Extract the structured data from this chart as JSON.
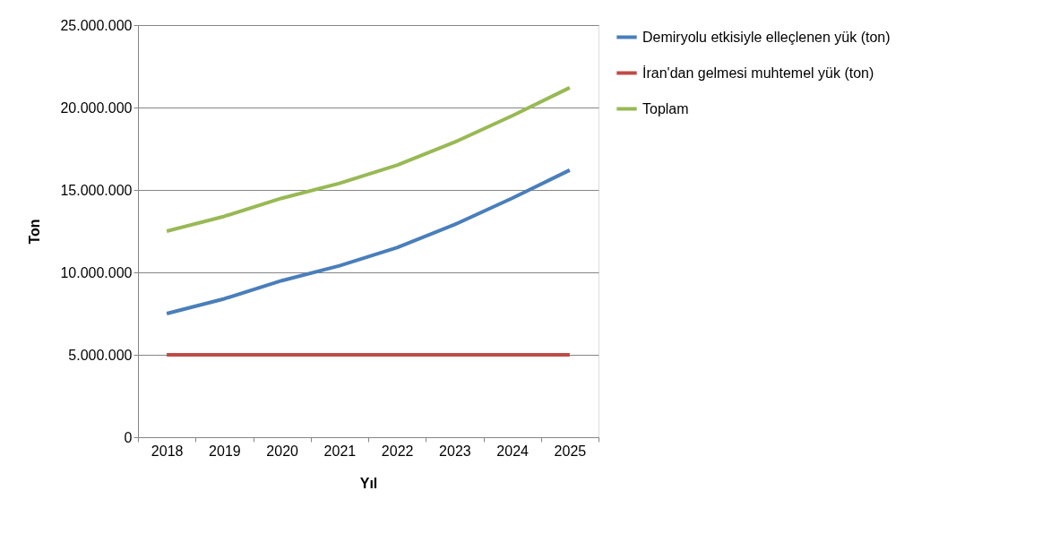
{
  "chart_data": {
    "type": "line",
    "xlabel": "Yıl",
    "ylabel": "Ton",
    "categories": [
      "2018",
      "2019",
      "2020",
      "2021",
      "2022",
      "2023",
      "2024",
      "2025"
    ],
    "series": [
      {
        "name": "Demiryolu etkisiyle elleçlenen yük (ton)",
        "color": "#4a7ebb",
        "values": [
          7500000,
          8400000,
          9500000,
          10400000,
          11500000,
          12900000,
          14500000,
          16200000
        ]
      },
      {
        "name": "İran'dan gelmesi muhtemel yük (ton)",
        "color": "#be4b48",
        "values": [
          5000000,
          5000000,
          5000000,
          5000000,
          5000000,
          5000000,
          5000000,
          5000000
        ]
      },
      {
        "name": "Toplam",
        "color": "#98b954",
        "values": [
          12500000,
          13400000,
          14500000,
          15400000,
          16500000,
          17900000,
          19500000,
          21200000
        ]
      }
    ],
    "ylim": [
      0,
      25000000
    ],
    "yticks": [
      {
        "value": 0,
        "label": "0"
      },
      {
        "value": 5000000,
        "label": "5.000.000"
      },
      {
        "value": 10000000,
        "label": "10.000.000"
      },
      {
        "value": 15000000,
        "label": "15.000.000"
      },
      {
        "value": 20000000,
        "label": "20.000.000"
      },
      {
        "value": 25000000,
        "label": "25.000.000"
      }
    ],
    "grid": "y",
    "legend": "right",
    "marker": "none",
    "line_style": "solid"
  }
}
